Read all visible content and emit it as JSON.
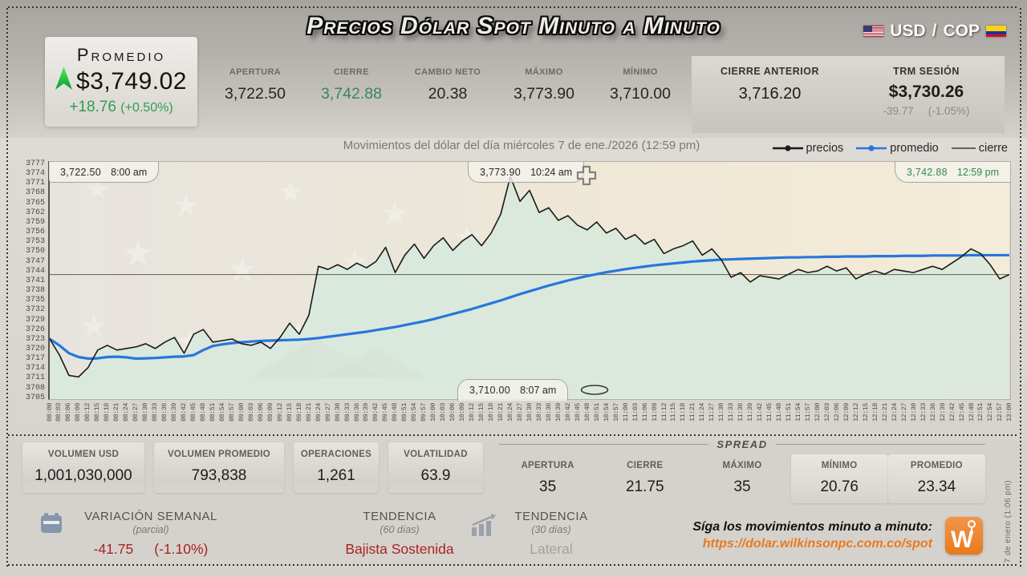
{
  "page": {
    "title": "Precios Dólar Spot Minuto a Minuto",
    "pair": {
      "base": "USD",
      "separator": "/",
      "quote": "COP"
    },
    "side_note": "7 de enero (1:06 pm)"
  },
  "promedio_card": {
    "label": "Promedio",
    "value": "$3,749.02",
    "change": "+18.76",
    "change_pct": "(+0.50%)"
  },
  "header_stats": [
    {
      "label": "APERTURA",
      "value": "3,722.50",
      "color": "#26251f"
    },
    {
      "label": "CIERRE",
      "value": "3,742.88",
      "color": "#37875a"
    },
    {
      "label": "CAMBIO NETO",
      "value": "20.38",
      "color": "#26251f"
    },
    {
      "label": "MÁXIMO",
      "value": "3,773.90",
      "color": "#26251f"
    },
    {
      "label": "MÍNIMO",
      "value": "3,710.00",
      "color": "#26251f"
    }
  ],
  "prev_close": {
    "label": "CIERRE ANTERIOR",
    "value": "3,716.20"
  },
  "trm": {
    "label": "TRM SESIÓN",
    "value": "$3,730.26",
    "change": "-39.77",
    "change_pct": "(-1.05%)"
  },
  "subtitle": "Movimientos del dólar del día miércoles 7 de ene./2026 (12:59 pm)",
  "legend": [
    {
      "label": "precios",
      "color": "#1b1b19",
      "style": "line-dot"
    },
    {
      "label": "promedio",
      "color": "#2776dd",
      "style": "line-dot"
    },
    {
      "label": "cierre",
      "color": "#1b1b19",
      "style": "line"
    }
  ],
  "chart_data": {
    "type": "line",
    "title": "Precios Dólar Spot Minuto a Minuto",
    "xlabel": "",
    "ylabel": "",
    "ylim": [
      3703.5,
      3778.5
    ],
    "y_ticks": [
      3777,
      3774,
      3771,
      3768,
      3765,
      3762,
      3759,
      3756,
      3753,
      3750,
      3747,
      3744,
      3741,
      3738,
      3735,
      3732,
      3729,
      3726,
      3723,
      3720,
      3717,
      3714,
      3711,
      3708,
      3705
    ],
    "fill_under_precios": "#d7e9dd",
    "x": [
      "08:00",
      "08:03",
      "08:06",
      "08:09",
      "08:12",
      "08:15",
      "08:18",
      "08:21",
      "08:24",
      "08:27",
      "08:30",
      "08:33",
      "08:36",
      "08:39",
      "08:42",
      "08:45",
      "08:48",
      "08:51",
      "08:54",
      "08:57",
      "09:00",
      "09:03",
      "09:06",
      "09:09",
      "09:12",
      "09:15",
      "09:18",
      "09:21",
      "09:24",
      "09:27",
      "09:30",
      "09:33",
      "09:36",
      "09:39",
      "09:42",
      "09:45",
      "09:48",
      "09:51",
      "09:54",
      "09:57",
      "10:00",
      "10:03",
      "10:06",
      "10:09",
      "10:12",
      "10:15",
      "10:18",
      "10:21",
      "10:24",
      "10:27",
      "10:30",
      "10:33",
      "10:36",
      "10:39",
      "10:42",
      "10:45",
      "10:48",
      "10:51",
      "10:54",
      "10:57",
      "11:00",
      "11:03",
      "11:06",
      "11:09",
      "11:12",
      "11:15",
      "11:18",
      "11:21",
      "11:24",
      "11:27",
      "11:30",
      "11:33",
      "11:36",
      "11:39",
      "11:42",
      "11:45",
      "11:48",
      "11:51",
      "11:54",
      "11:57",
      "12:00",
      "12:03",
      "12:06",
      "12:09",
      "12:12",
      "12:15",
      "12:18",
      "12:21",
      "12:24",
      "12:27",
      "12:30",
      "12:33",
      "12:36",
      "12:39",
      "12:42",
      "12:45",
      "12:48",
      "12:51",
      "12:54",
      "12:57",
      "13:00"
    ],
    "series": [
      {
        "name": "precios",
        "color": "#1a1a18",
        "values": [
          3722.5,
          3717.5,
          3711.0,
          3710.5,
          3713.5,
          3719.0,
          3720.5,
          3719.0,
          3719.5,
          3720.0,
          3721.0,
          3719.5,
          3721.5,
          3723.0,
          3718.0,
          3724.0,
          3725.5,
          3721.5,
          3722.0,
          3722.5,
          3721.0,
          3720.5,
          3721.5,
          3719.5,
          3723.0,
          3727.5,
          3724.0,
          3730.0,
          3745.5,
          3744.5,
          3746.0,
          3744.5,
          3746.5,
          3745.0,
          3747.0,
          3751.5,
          3743.5,
          3749.0,
          3752.5,
          3748.0,
          3752.0,
          3754.5,
          3750.5,
          3753.5,
          3755.5,
          3752.0,
          3756.0,
          3762.0,
          3773.9,
          3766.0,
          3769.5,
          3762.5,
          3764.0,
          3760.0,
          3761.5,
          3758.5,
          3757.0,
          3759.5,
          3756.0,
          3757.5,
          3754.0,
          3755.5,
          3752.5,
          3754.0,
          3749.5,
          3751.0,
          3752.0,
          3753.5,
          3749.0,
          3751.0,
          3747.5,
          3742.0,
          3743.5,
          3740.5,
          3742.5,
          3742.0,
          3741.5,
          3743.0,
          3744.5,
          3743.5,
          3744.0,
          3745.5,
          3744.0,
          3745.0,
          3741.5,
          3743.0,
          3744.0,
          3743.0,
          3744.5,
          3744.0,
          3743.5,
          3744.5,
          3745.5,
          3744.5,
          3746.5,
          3748.5,
          3751.0,
          3749.5,
          3746.0,
          3741.5,
          3742.88
        ]
      },
      {
        "name": "promedio",
        "color": "#2776dd",
        "values": [
          3722.5,
          3720.5,
          3718.0,
          3716.8,
          3716.3,
          3716.4,
          3716.8,
          3716.9,
          3716.7,
          3716.3,
          3716.4,
          3716.5,
          3716.7,
          3716.9,
          3717.0,
          3717.4,
          3719.0,
          3720.3,
          3720.8,
          3721.2,
          3721.5,
          3721.7,
          3721.9,
          3722.0,
          3722.1,
          3722.2,
          3722.3,
          3722.5,
          3722.8,
          3723.2,
          3723.6,
          3724.0,
          3724.4,
          3724.8,
          3725.3,
          3725.8,
          3726.3,
          3726.9,
          3727.5,
          3728.1,
          3728.8,
          3729.6,
          3730.4,
          3731.2,
          3732.0,
          3732.9,
          3733.8,
          3734.7,
          3735.7,
          3736.7,
          3737.6,
          3738.5,
          3739.4,
          3740.2,
          3741.0,
          3741.7,
          3742.4,
          3743.0,
          3743.6,
          3744.1,
          3744.6,
          3745.0,
          3745.4,
          3745.8,
          3746.1,
          3746.4,
          3746.7,
          3747.0,
          3747.2,
          3747.4,
          3747.6,
          3747.7,
          3747.8,
          3747.9,
          3748.0,
          3748.1,
          3748.2,
          3748.3,
          3748.3,
          3748.4,
          3748.4,
          3748.5,
          3748.5,
          3748.6,
          3748.6,
          3748.6,
          3748.7,
          3748.7,
          3748.7,
          3748.8,
          3748.8,
          3748.8,
          3748.9,
          3748.9,
          3748.9,
          3748.9,
          3749.0,
          3749.0,
          3749.0,
          3749.0,
          3749.02
        ]
      },
      {
        "name": "cierre",
        "color": "#5f5d59",
        "constant": 3742.88
      }
    ],
    "annotations": [
      {
        "value": "3,722.50",
        "time": "8:00 am",
        "position": "top-left"
      },
      {
        "value": "3,773.90",
        "time": "10:24 am",
        "position": "top-middle"
      },
      {
        "value": "3,742.88",
        "time": "12:59 pm",
        "position": "top-right"
      },
      {
        "value": "3,710.00",
        "time": "8:07 am",
        "position": "bottom-middle"
      }
    ]
  },
  "volume_stats": [
    {
      "label": "VOLUMEN USD",
      "value": "1,001,030,000"
    },
    {
      "label": "VOLUMEN PROMEDIO",
      "value": "793,838"
    },
    {
      "label": "OPERACIONES",
      "value": "1,261"
    },
    {
      "label": "VOLATILIDAD",
      "value": "63.9"
    }
  ],
  "spread": {
    "title": "SPREAD",
    "stats": [
      {
        "label": "APERTURA",
        "value": "35"
      },
      {
        "label": "CIERRE",
        "value": "21.75"
      },
      {
        "label": "MÁXIMO",
        "value": "35"
      },
      {
        "label": "MÍNIMO",
        "value": "20.76"
      },
      {
        "label": "PROMEDIO",
        "value": "23.34"
      }
    ]
  },
  "footer": {
    "weekly": {
      "label": "VARIACIÓN SEMANAL",
      "sublabel": "(parcial)",
      "value": "-41.75",
      "value_pct": "(-1.10%)"
    },
    "trend60": {
      "label": "TENDENCIA",
      "sublabel": "(60 días)",
      "value": "Bajista Sostenida"
    },
    "trend30": {
      "label": "TENDENCIA",
      "sublabel": "(30 días)",
      "value": "Lateral"
    },
    "follow": {
      "text": "Síga los movimientos minuto a minuto:",
      "url": "https://dolar.wilkinsonpc.com.co/spot"
    },
    "logo_letter": "W"
  }
}
